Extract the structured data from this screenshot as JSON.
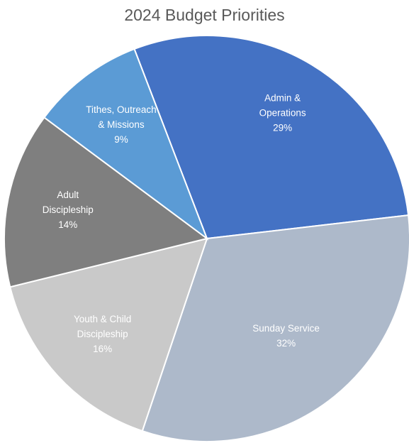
{
  "chart_data": {
    "type": "pie",
    "title": "2024 Budget Priorities",
    "slices": [
      {
        "name": "Admin & Operations",
        "label_lines": [
          "Admin &",
          "Operations"
        ],
        "percent": "29%",
        "value": 29,
        "color": "#4472C4"
      },
      {
        "name": "Sunday Service",
        "label_lines": [
          "Sunday Service"
        ],
        "percent": "32%",
        "value": 32,
        "color": "#ADB9CA"
      },
      {
        "name": "Youth & Child Discipleship",
        "label_lines": [
          "Youth & Child",
          "Discipleship"
        ],
        "percent": "16%",
        "value": 16,
        "color": "#C9C9C9"
      },
      {
        "name": "Adult Discipleship",
        "label_lines": [
          "Adult",
          "Discipleship"
        ],
        "percent": "14%",
        "value": 14,
        "color": "#7F7F7F"
      },
      {
        "name": "Tithes, Outreach & Missions",
        "label_lines": [
          "Tithes, Outreach",
          "& Missions"
        ],
        "percent": "9%",
        "value": 9,
        "color": "#5B9BD5"
      }
    ]
  }
}
